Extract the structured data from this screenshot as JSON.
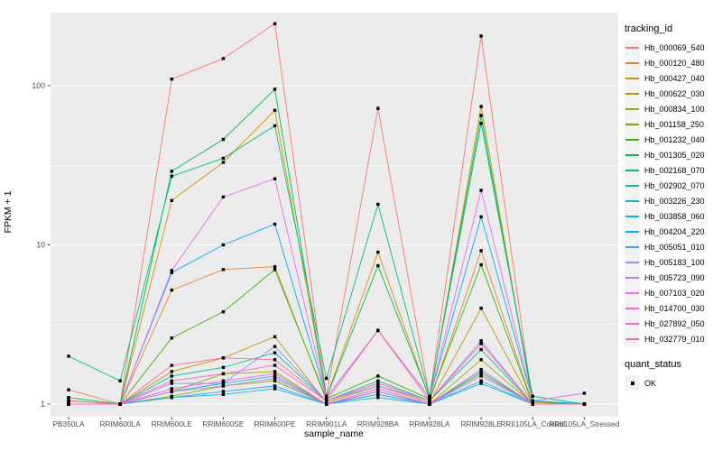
{
  "chart_data": {
    "type": "line",
    "title": "",
    "xlabel": "sample_name",
    "ylabel": "FPKM + 1",
    "y_scale": "log10",
    "ylim": [
      0.95,
      290
    ],
    "grid": true,
    "panel_bg": "#EBEBEB",
    "grid_color": "#FFFFFF",
    "tick_label_color": "#4D4D4D",
    "point_shape": "filled-square",
    "point_color": "#000000",
    "y_ticks": [
      {
        "label": "1",
        "value": 1
      },
      {
        "label": "10",
        "value": 10
      },
      {
        "label": "100",
        "value": 100
      }
    ],
    "y_minor_ticks": [
      3.162,
      31.62
    ],
    "categories": [
      "PB350LA",
      "RRIM600LA",
      "RRIM600LE",
      "RRIM600SE",
      "RRIM600PE",
      "RRIM901LA",
      "RRIM928BA",
      "RRIM928LA",
      "RRIM928LE",
      "RRII105LA_Control",
      "RRII105LA_Stressed"
    ],
    "legend": {
      "line_title": "tracking_id",
      "point_title": "quant_status",
      "point_label": "OK",
      "position": "right"
    },
    "series": [
      {
        "name": "Hb_000069_540",
        "color": "#F8766D",
        "values": [
          1.23,
          1.0,
          110,
          148,
          245,
          1.12,
          72,
          1.1,
          205,
          1.0,
          1.0
        ]
      },
      {
        "name": "Hb_000120_480",
        "color": "#EA8331",
        "values": [
          1.0,
          1.0,
          5.2,
          7.0,
          7.3,
          1.05,
          1.35,
          1.05,
          9.2,
          1.0,
          1.0
        ]
      },
      {
        "name": "Hb_000427_040",
        "color": "#D89000",
        "values": [
          1.05,
          1.0,
          19,
          33,
          70,
          1.1,
          9.0,
          1.08,
          74,
          1.02,
          1.0
        ]
      },
      {
        "name": "Hb_000622_030",
        "color": "#C09B00",
        "values": [
          1.0,
          1.0,
          1.6,
          1.95,
          2.65,
          1.02,
          1.3,
          1.02,
          4.0,
          1.0,
          1.0
        ]
      },
      {
        "name": "Hb_000834_100",
        "color": "#A3A500",
        "values": [
          1.0,
          1.0,
          1.2,
          1.55,
          1.6,
          1.0,
          1.2,
          1.0,
          1.9,
          1.0,
          1.0
        ]
      },
      {
        "name": "Hb_001158_250",
        "color": "#7CAE00",
        "values": [
          1.0,
          1.0,
          1.12,
          1.3,
          1.4,
          1.0,
          1.15,
          1.0,
          1.55,
          1.0,
          1.0
        ]
      },
      {
        "name": "Hb_001232_040",
        "color": "#39B600",
        "values": [
          1.05,
          1.0,
          2.6,
          3.8,
          7.0,
          1.08,
          1.5,
          1.08,
          7.5,
          1.0,
          1.0
        ]
      },
      {
        "name": "Hb_001305_020",
        "color": "#00BB4E",
        "values": [
          1.1,
          1.0,
          29,
          46,
          95,
          1.1,
          7.4,
          1.1,
          65,
          1.04,
          1.0
        ]
      },
      {
        "name": "Hb_002168_070",
        "color": "#00BF7D",
        "values": [
          2.0,
          1.4,
          27,
          35,
          56,
          1.45,
          18,
          1.12,
          58,
          1.12,
          1.0
        ]
      },
      {
        "name": "Hb_002902_070",
        "color": "#00C1A3",
        "values": [
          1.0,
          1.0,
          1.5,
          1.7,
          2.1,
          1.05,
          1.4,
          1.05,
          2.2,
          1.0,
          1.0
        ]
      },
      {
        "name": "Hb_003226_230",
        "color": "#00BFC4",
        "values": [
          1.0,
          1.0,
          1.2,
          1.35,
          1.5,
          1.0,
          1.2,
          1.0,
          1.6,
          1.0,
          1.0
        ]
      },
      {
        "name": "Hb_003858_060",
        "color": "#00BAE0",
        "values": [
          1.0,
          1.0,
          1.1,
          1.15,
          1.25,
          1.0,
          1.1,
          1.0,
          1.35,
          1.0,
          1.0
        ]
      },
      {
        "name": "Hb_004204_220",
        "color": "#00B0F6",
        "values": [
          1.0,
          1.0,
          6.7,
          10,
          13.5,
          1.1,
          2.9,
          1.1,
          15,
          1.05,
          1.0
        ]
      },
      {
        "name": "Hb_005051_010",
        "color": "#35A2FF",
        "values": [
          1.0,
          1.0,
          1.1,
          1.2,
          1.3,
          1.0,
          1.15,
          1.0,
          1.4,
          1.0,
          1.0
        ]
      },
      {
        "name": "Hb_005183_100",
        "color": "#9590FF",
        "values": [
          1.0,
          1.0,
          1.35,
          1.35,
          2.3,
          1.05,
          1.3,
          1.05,
          2.5,
          1.0,
          1.0
        ]
      },
      {
        "name": "Hb_005723_090",
        "color": "#C77CFF",
        "values": [
          1.0,
          1.0,
          1.2,
          1.3,
          1.45,
          1.0,
          1.2,
          1.0,
          1.5,
          1.0,
          1.0
        ]
      },
      {
        "name": "Hb_007103_020",
        "color": "#E76BF3",
        "values": [
          1.0,
          1.0,
          6.9,
          20,
          26,
          1.1,
          2.9,
          1.1,
          22,
          1.05,
          1.17
        ]
      },
      {
        "name": "Hb_014700_030",
        "color": "#FA62DB",
        "values": [
          1.0,
          1.0,
          1.25,
          1.4,
          1.55,
          1.0,
          1.25,
          1.0,
          1.65,
          1.0,
          1.0
        ]
      },
      {
        "name": "Hb_027892_050",
        "color": "#FF62BC",
        "values": [
          1.0,
          1.0,
          1.4,
          1.55,
          1.75,
          1.05,
          1.35,
          1.05,
          2.4,
          1.0,
          1.0
        ]
      },
      {
        "name": "Hb_032779_010",
        "color": "#FF6A98",
        "values": [
          1.05,
          1.0,
          1.75,
          1.95,
          1.9,
          1.05,
          2.9,
          1.05,
          2.4,
          1.0,
          1.0
        ]
      }
    ]
  }
}
